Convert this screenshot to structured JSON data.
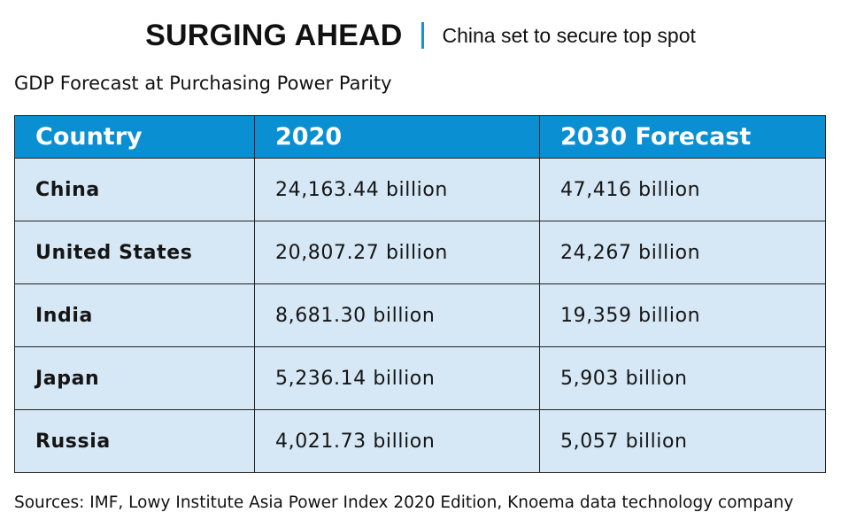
{
  "header": {
    "headline": "SURGING AHEAD",
    "kicker": "China set to secure top spot"
  },
  "subtitle": "GDP Forecast at Purchasing Power Parity",
  "table": {
    "columns": [
      "Country",
      "2020",
      "2030 Forecast"
    ],
    "rows": [
      {
        "country": "China",
        "gdp_2020": "24,163.44 billion",
        "gdp_2030": "47,416 billion"
      },
      {
        "country": "United States",
        "gdp_2020": "20,807.27 billion",
        "gdp_2030": "24,267 billion"
      },
      {
        "country": "India",
        "gdp_2020": "8,681.30 billion",
        "gdp_2030": "19,359 billion"
      },
      {
        "country": "Japan",
        "gdp_2020": "5,236.14 billion",
        "gdp_2030": "5,903 billion"
      },
      {
        "country": "Russia",
        "gdp_2020": "4,021.73 billion",
        "gdp_2030": "5,057 billion"
      }
    ]
  },
  "sources": "Sources: IMF, Lowy Institute Asia Power Index 2020 Edition, Knoema data technology company",
  "colors": {
    "header_blue": "#0b8fd3",
    "row_light_blue": "#d6e8f6",
    "divider_blue": "#1a8fd6"
  }
}
